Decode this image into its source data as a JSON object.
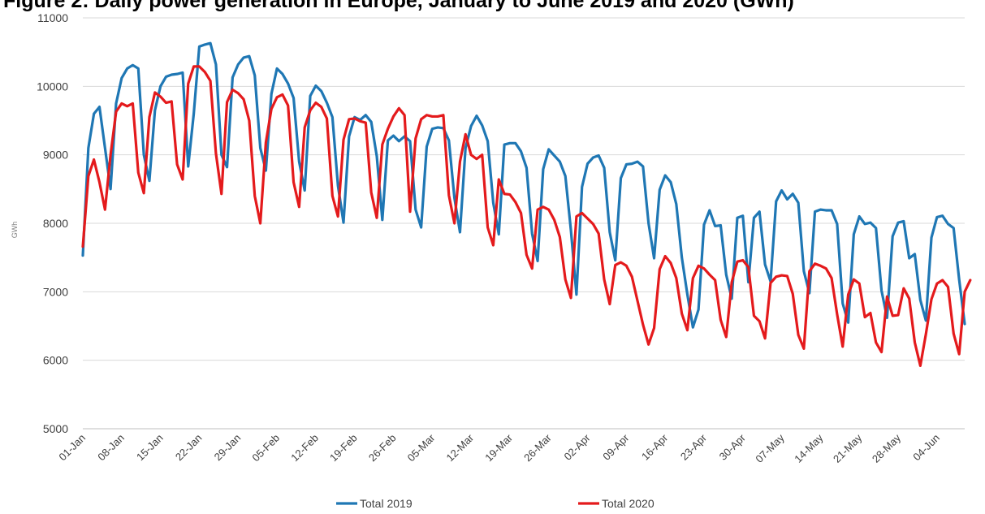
{
  "chart_data": {
    "type": "line",
    "title": "Figure 2: Daily power generation in Europe, January to June 2019 and 2020 (GWh)",
    "ylabel": "GWh",
    "xlabel": "",
    "ylim": [
      5000,
      11000
    ],
    "yticks": [
      5000,
      6000,
      7000,
      8000,
      9000,
      10000,
      11000
    ],
    "grid": "horizontal",
    "legend_position": "bottom",
    "x_start": "01-Jan",
    "x_tick_labels": [
      "01-Jan",
      "08-Jan",
      "15-Jan",
      "22-Jan",
      "29-Jan",
      "05-Feb",
      "12-Feb",
      "19-Feb",
      "26-Feb",
      "05-Mar",
      "12-Mar",
      "19-Mar",
      "26-Mar",
      "02-Apr",
      "09-Apr",
      "16-Apr",
      "23-Apr",
      "30-Apr",
      "07-May",
      "14-May",
      "21-May",
      "28-May",
      "04-Jun"
    ],
    "series": [
      {
        "name": "Total 2019",
        "color": "#1f77b4",
        "values": [
          7530,
          9100,
          9600,
          9700,
          9100,
          8500,
          9750,
          10120,
          10260,
          10310,
          10260,
          9000,
          8620,
          9650,
          10000,
          10140,
          10170,
          10180,
          10200,
          8830,
          9600,
          10580,
          10610,
          10630,
          10320,
          9000,
          8820,
          10130,
          10320,
          10420,
          10440,
          10160,
          9100,
          8770,
          9890,
          10260,
          10180,
          10040,
          9830,
          8900,
          8480,
          9860,
          10010,
          9930,
          9760,
          9550,
          8550,
          8010,
          9270,
          9550,
          9510,
          9580,
          9480,
          8980,
          8050,
          9210,
          9280,
          9200,
          9270,
          9200,
          8200,
          7940,
          9120,
          9380,
          9400,
          9390,
          9210,
          8370,
          7870,
          9100,
          9420,
          9570,
          9430,
          9200,
          8300,
          7840,
          9150,
          9170,
          9170,
          9050,
          8810,
          7850,
          7450,
          8790,
          9080,
          8990,
          8900,
          8690,
          7900,
          6960,
          8530,
          8870,
          8960,
          8990,
          8810,
          7870,
          7460,
          8660,
          8860,
          8870,
          8900,
          8830,
          8000,
          7490,
          8490,
          8700,
          8600,
          8280,
          7500,
          6960,
          6480,
          6740,
          7980,
          8190,
          7960,
          7970,
          7250,
          6900,
          8080,
          8110,
          7140,
          8080,
          8170,
          7400,
          7150,
          8320,
          8480,
          8350,
          8430,
          8300,
          7300,
          6980,
          8170,
          8200,
          8190,
          8190,
          7990,
          6830,
          6550,
          7840,
          8100,
          7990,
          8010,
          7930,
          7020,
          6620,
          7810,
          8010,
          8030,
          7490,
          7550,
          6880,
          6580,
          7790,
          8090,
          8110,
          7990,
          7930,
          7180,
          6530
        ]
      },
      {
        "name": "Total 2020",
        "color": "#e41a1c",
        "values": [
          7660,
          8690,
          8930,
          8600,
          8200,
          9000,
          9630,
          9750,
          9710,
          9750,
          8740,
          8440,
          9550,
          9910,
          9850,
          9760,
          9780,
          8860,
          8640,
          10040,
          10290,
          10290,
          10210,
          10080,
          9020,
          8430,
          9770,
          9950,
          9900,
          9810,
          9500,
          8400,
          8000,
          9180,
          9670,
          9840,
          9880,
          9720,
          8600,
          8240,
          9400,
          9650,
          9760,
          9700,
          9530,
          8400,
          8100,
          9220,
          9520,
          9530,
          9490,
          9470,
          8450,
          8080,
          9150,
          9380,
          9560,
          9680,
          9580,
          8170,
          9240,
          9520,
          9580,
          9560,
          9560,
          9580,
          8410,
          8000,
          8900,
          9300,
          9000,
          8940,
          9000,
          7940,
          7680,
          8640,
          8430,
          8420,
          8310,
          8150,
          7540,
          7340,
          8200,
          8240,
          8200,
          8050,
          7800,
          7180,
          6910,
          8100,
          8150,
          8070,
          7990,
          7850,
          7180,
          6820,
          7390,
          7430,
          7380,
          7220,
          6870,
          6520,
          6230,
          6470,
          7330,
          7520,
          7420,
          7200,
          6680,
          6440,
          7200,
          7380,
          7340,
          7250,
          7170,
          6590,
          6340,
          7140,
          7440,
          7460,
          7360,
          6650,
          6570,
          6320,
          7130,
          7220,
          7240,
          7230,
          6970,
          6370,
          6170,
          7300,
          7410,
          7380,
          7340,
          7200,
          6670,
          6200,
          6960,
          7180,
          7120,
          6630,
          6690,
          6260,
          6120,
          6930,
          6650,
          6660,
          7050,
          6900,
          6260,
          5920,
          6380,
          6890,
          7120,
          7170,
          7070,
          6390,
          6090,
          7000,
          7170
        ]
      }
    ]
  }
}
